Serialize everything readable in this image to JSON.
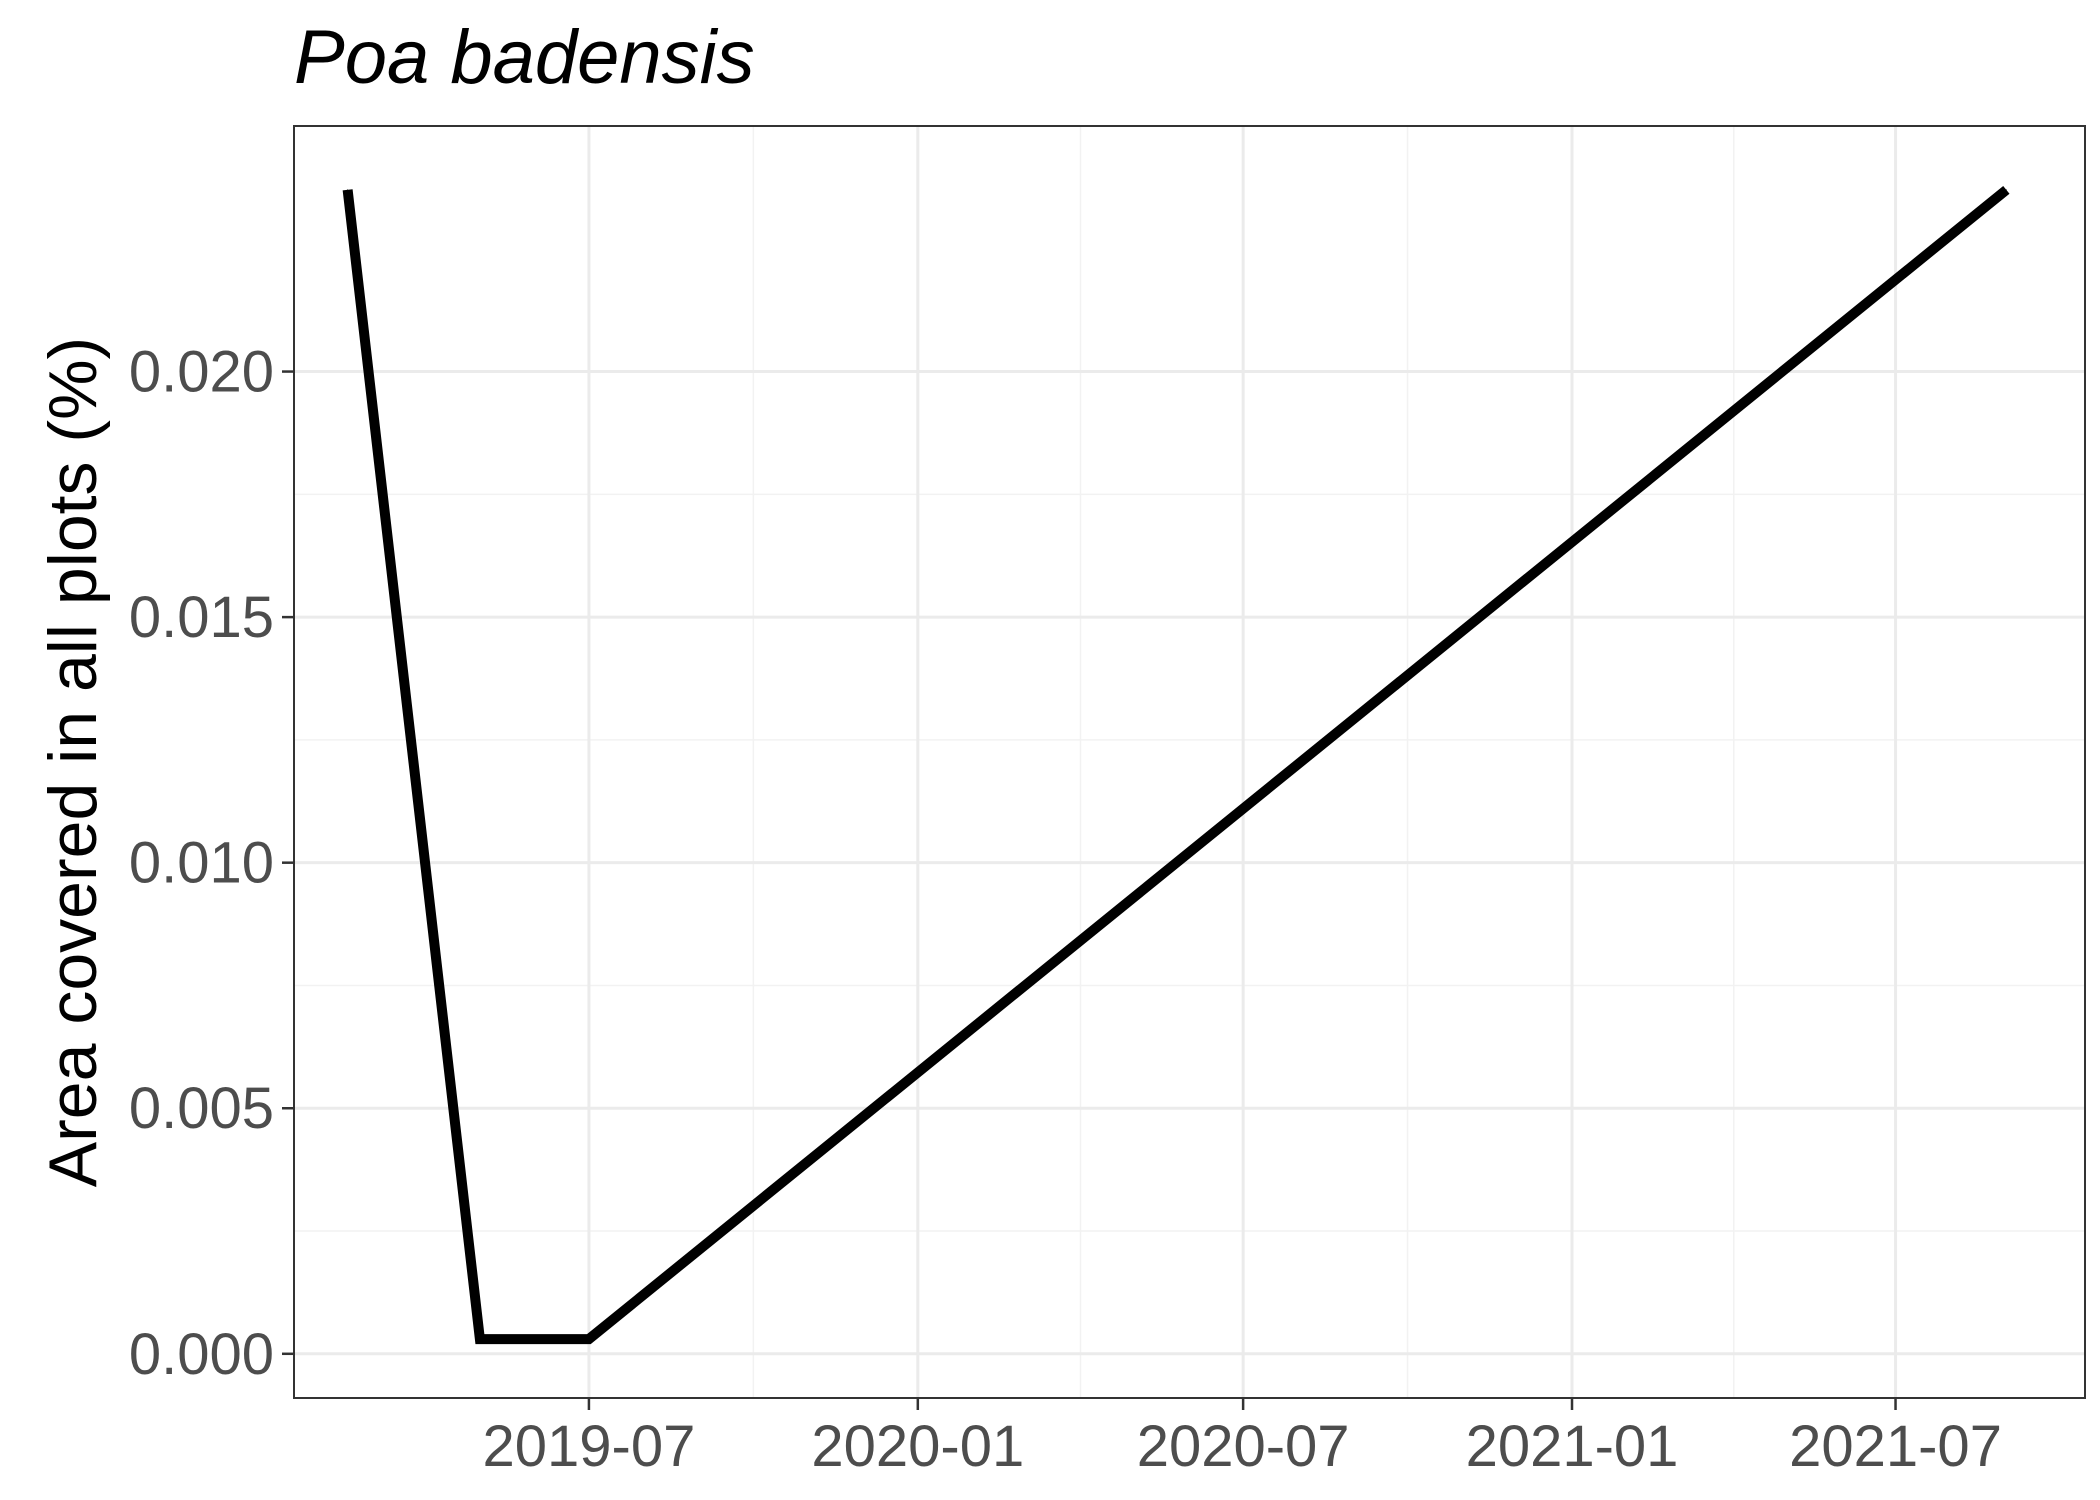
{
  "chart_data": {
    "type": "line",
    "title": "Poa badensis",
    "xlabel": "",
    "ylabel": "Area covered in all plots (%)",
    "x_tick_labels": [
      "2019-07",
      "2020-01",
      "2020-07",
      "2021-01",
      "2021-07"
    ],
    "y_tick_labels": [
      "0.000",
      "0.005",
      "0.010",
      "0.015",
      "0.020"
    ],
    "x_ticks": [
      "2019-07-01",
      "2020-01-01",
      "2020-07-01",
      "2021-01-01",
      "2021-07-01"
    ],
    "y_ticks": [
      0.0,
      0.005,
      0.01,
      0.015,
      0.02
    ],
    "xlim": [
      "2019-01-17",
      "2021-10-15"
    ],
    "ylim": [
      -0.0009,
      0.025
    ],
    "grid": true,
    "series": [
      {
        "x": [
          "2019-02-16",
          "2019-05-01",
          "2019-07-01",
          "2021-09-01"
        ],
        "y": [
          0.0237,
          0.0003,
          0.0003,
          0.0237
        ],
        "color": "#000000"
      }
    ]
  }
}
